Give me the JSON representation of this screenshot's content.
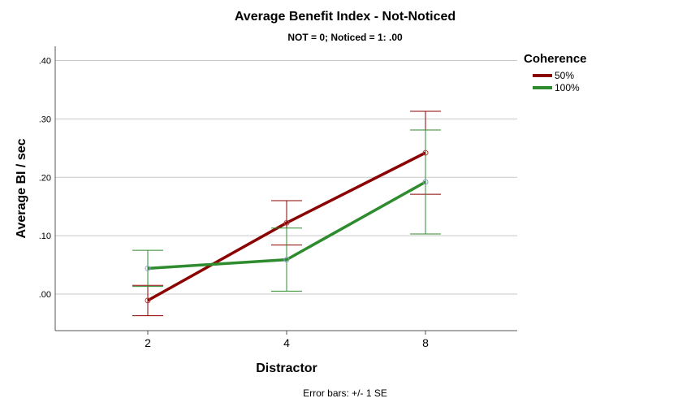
{
  "chart_data": {
    "type": "line",
    "title": "Average Benefit Index - Not-Noticed",
    "subtitle": "NOT = 0; Noticed = 1: .00",
    "xlabel": "Distractor",
    "ylabel": "Average BI / sec",
    "categories": [
      "2",
      "4",
      "8"
    ],
    "ylim": [
      -0.065,
      0.44
    ],
    "yticks": [
      ".00",
      ".10",
      ".20",
      ".30",
      ".40"
    ],
    "ytick_values": [
      0,
      0.1,
      0.2,
      0.3,
      0.4
    ],
    "grid": "horizontal",
    "legend": {
      "title": "Coherence",
      "position": "top-right"
    },
    "footnote": "Error bars: +/- 1 SE",
    "series": [
      {
        "name": "50%",
        "color": "#8b0000",
        "values": [
          -0.011,
          0.122,
          0.242
        ],
        "errors": [
          0.026,
          0.038,
          0.071
        ]
      },
      {
        "name": "100%",
        "color": "#2e8b2e",
        "values": [
          0.044,
          0.059,
          0.192
        ],
        "errors": [
          0.031,
          0.054,
          0.089
        ]
      }
    ]
  }
}
